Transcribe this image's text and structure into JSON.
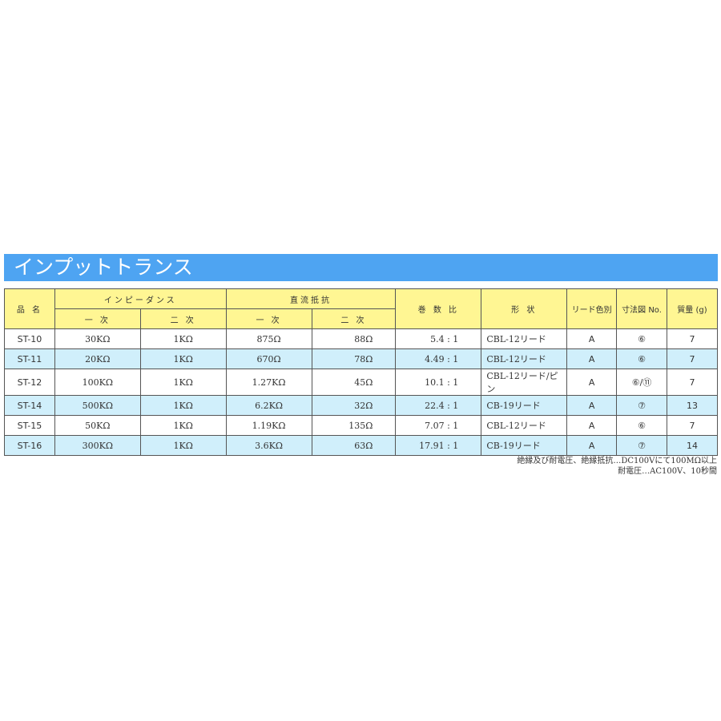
{
  "title": "インプットトランス",
  "headers": {
    "name": "品 名",
    "impedance": "インピーダンス",
    "dcr": "直流抵抗",
    "primary": "一 次",
    "secondary": "二 次",
    "ratio": "巻 数 比",
    "shape": "形 状",
    "lead_color": "リード色別",
    "dimension": "寸法図 No.",
    "mass": "質量 (g)"
  },
  "rows": [
    {
      "name": "ST-10",
      "imp1": "30KΩ",
      "imp2": "1KΩ",
      "dc1": "875Ω",
      "dc2": "88Ω",
      "ratio": "5.4 : 1",
      "shape": "CBL-12リード",
      "lead": "A",
      "dim": "⑥",
      "mass": "7"
    },
    {
      "name": "ST-11",
      "imp1": "20KΩ",
      "imp2": "1KΩ",
      "dc1": "670Ω",
      "dc2": "78Ω",
      "ratio": "4.49 : 1",
      "shape": "CBL-12リード",
      "lead": "A",
      "dim": "⑥",
      "mass": "7"
    },
    {
      "name": "ST-12",
      "imp1": "100KΩ",
      "imp2": "1KΩ",
      "dc1": "1.27KΩ",
      "dc2": "45Ω",
      "ratio": "10.1 : 1",
      "shape": "CBL-12リード/ピン",
      "lead": "A",
      "dim": "⑥/⑪",
      "mass": "7"
    },
    {
      "name": "ST-14",
      "imp1": "500KΩ",
      "imp2": "1KΩ",
      "dc1": "6.2KΩ",
      "dc2": "32Ω",
      "ratio": "22.4 : 1",
      "shape": "CB-19リード",
      "lead": "A",
      "dim": "⑦",
      "mass": "13"
    },
    {
      "name": "ST-15",
      "imp1": "50KΩ",
      "imp2": "1KΩ",
      "dc1": "1.19KΩ",
      "dc2": "135Ω",
      "ratio": "7.07 : 1",
      "shape": "CBL-12リード",
      "lead": "A",
      "dim": "⑥",
      "mass": "7"
    },
    {
      "name": "ST-16",
      "imp1": "300KΩ",
      "imp2": "1KΩ",
      "dc1": "3.6KΩ",
      "dc2": "63Ω",
      "ratio": "17.91 : 1",
      "shape": "CB-19リード",
      "lead": "A",
      "dim": "⑦",
      "mass": "14"
    }
  ],
  "notes": [
    "絶縁及び耐電圧、絶縁抵抗…DC100Vにて100MΩ以上",
    "耐電圧…AC100V、10秒間"
  ],
  "colors": {
    "title_bg": "#4ea4f2",
    "header_bg": "#fff693",
    "stripe": "#d0effb"
  }
}
